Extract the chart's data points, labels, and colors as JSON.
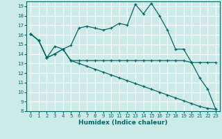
{
  "xlabel": "Humidex (Indice chaleur)",
  "bg_color": "#cceae8",
  "grid_color": "#ffffff",
  "line_color": "#006666",
  "xlim": [
    -0.5,
    23.5
  ],
  "ylim": [
    8,
    19.5
  ],
  "xticks": [
    0,
    1,
    2,
    3,
    4,
    5,
    6,
    7,
    8,
    9,
    10,
    11,
    12,
    13,
    14,
    15,
    16,
    17,
    18,
    19,
    20,
    21,
    22,
    23
  ],
  "yticks": [
    8,
    9,
    10,
    11,
    12,
    13,
    14,
    15,
    16,
    17,
    18,
    19
  ],
  "series1": [
    16.1,
    15.4,
    13.6,
    14.8,
    14.5,
    14.9,
    16.7,
    16.9,
    16.7,
    16.5,
    16.7,
    17.2,
    17.0,
    19.2,
    18.2,
    19.3,
    18.0,
    16.5,
    14.5,
    14.5,
    13.1,
    11.5,
    10.3,
    8.2
  ],
  "series2": [
    16.1,
    15.4,
    13.6,
    14.0,
    14.5,
    13.3,
    13.3,
    13.3,
    13.3,
    13.3,
    13.3,
    13.3,
    13.3,
    13.3,
    13.3,
    13.3,
    13.3,
    13.3,
    13.3,
    13.3,
    13.1,
    13.1,
    13.1,
    13.1
  ],
  "series3": [
    16.1,
    15.4,
    13.6,
    14.0,
    14.5,
    13.3,
    13.0,
    12.7,
    12.4,
    12.1,
    11.8,
    11.5,
    11.2,
    10.9,
    10.6,
    10.3,
    10.0,
    9.7,
    9.4,
    9.1,
    8.8,
    8.5,
    8.3,
    8.2
  ],
  "xlabel_fontsize": 6.5,
  "tick_fontsize": 5.0
}
